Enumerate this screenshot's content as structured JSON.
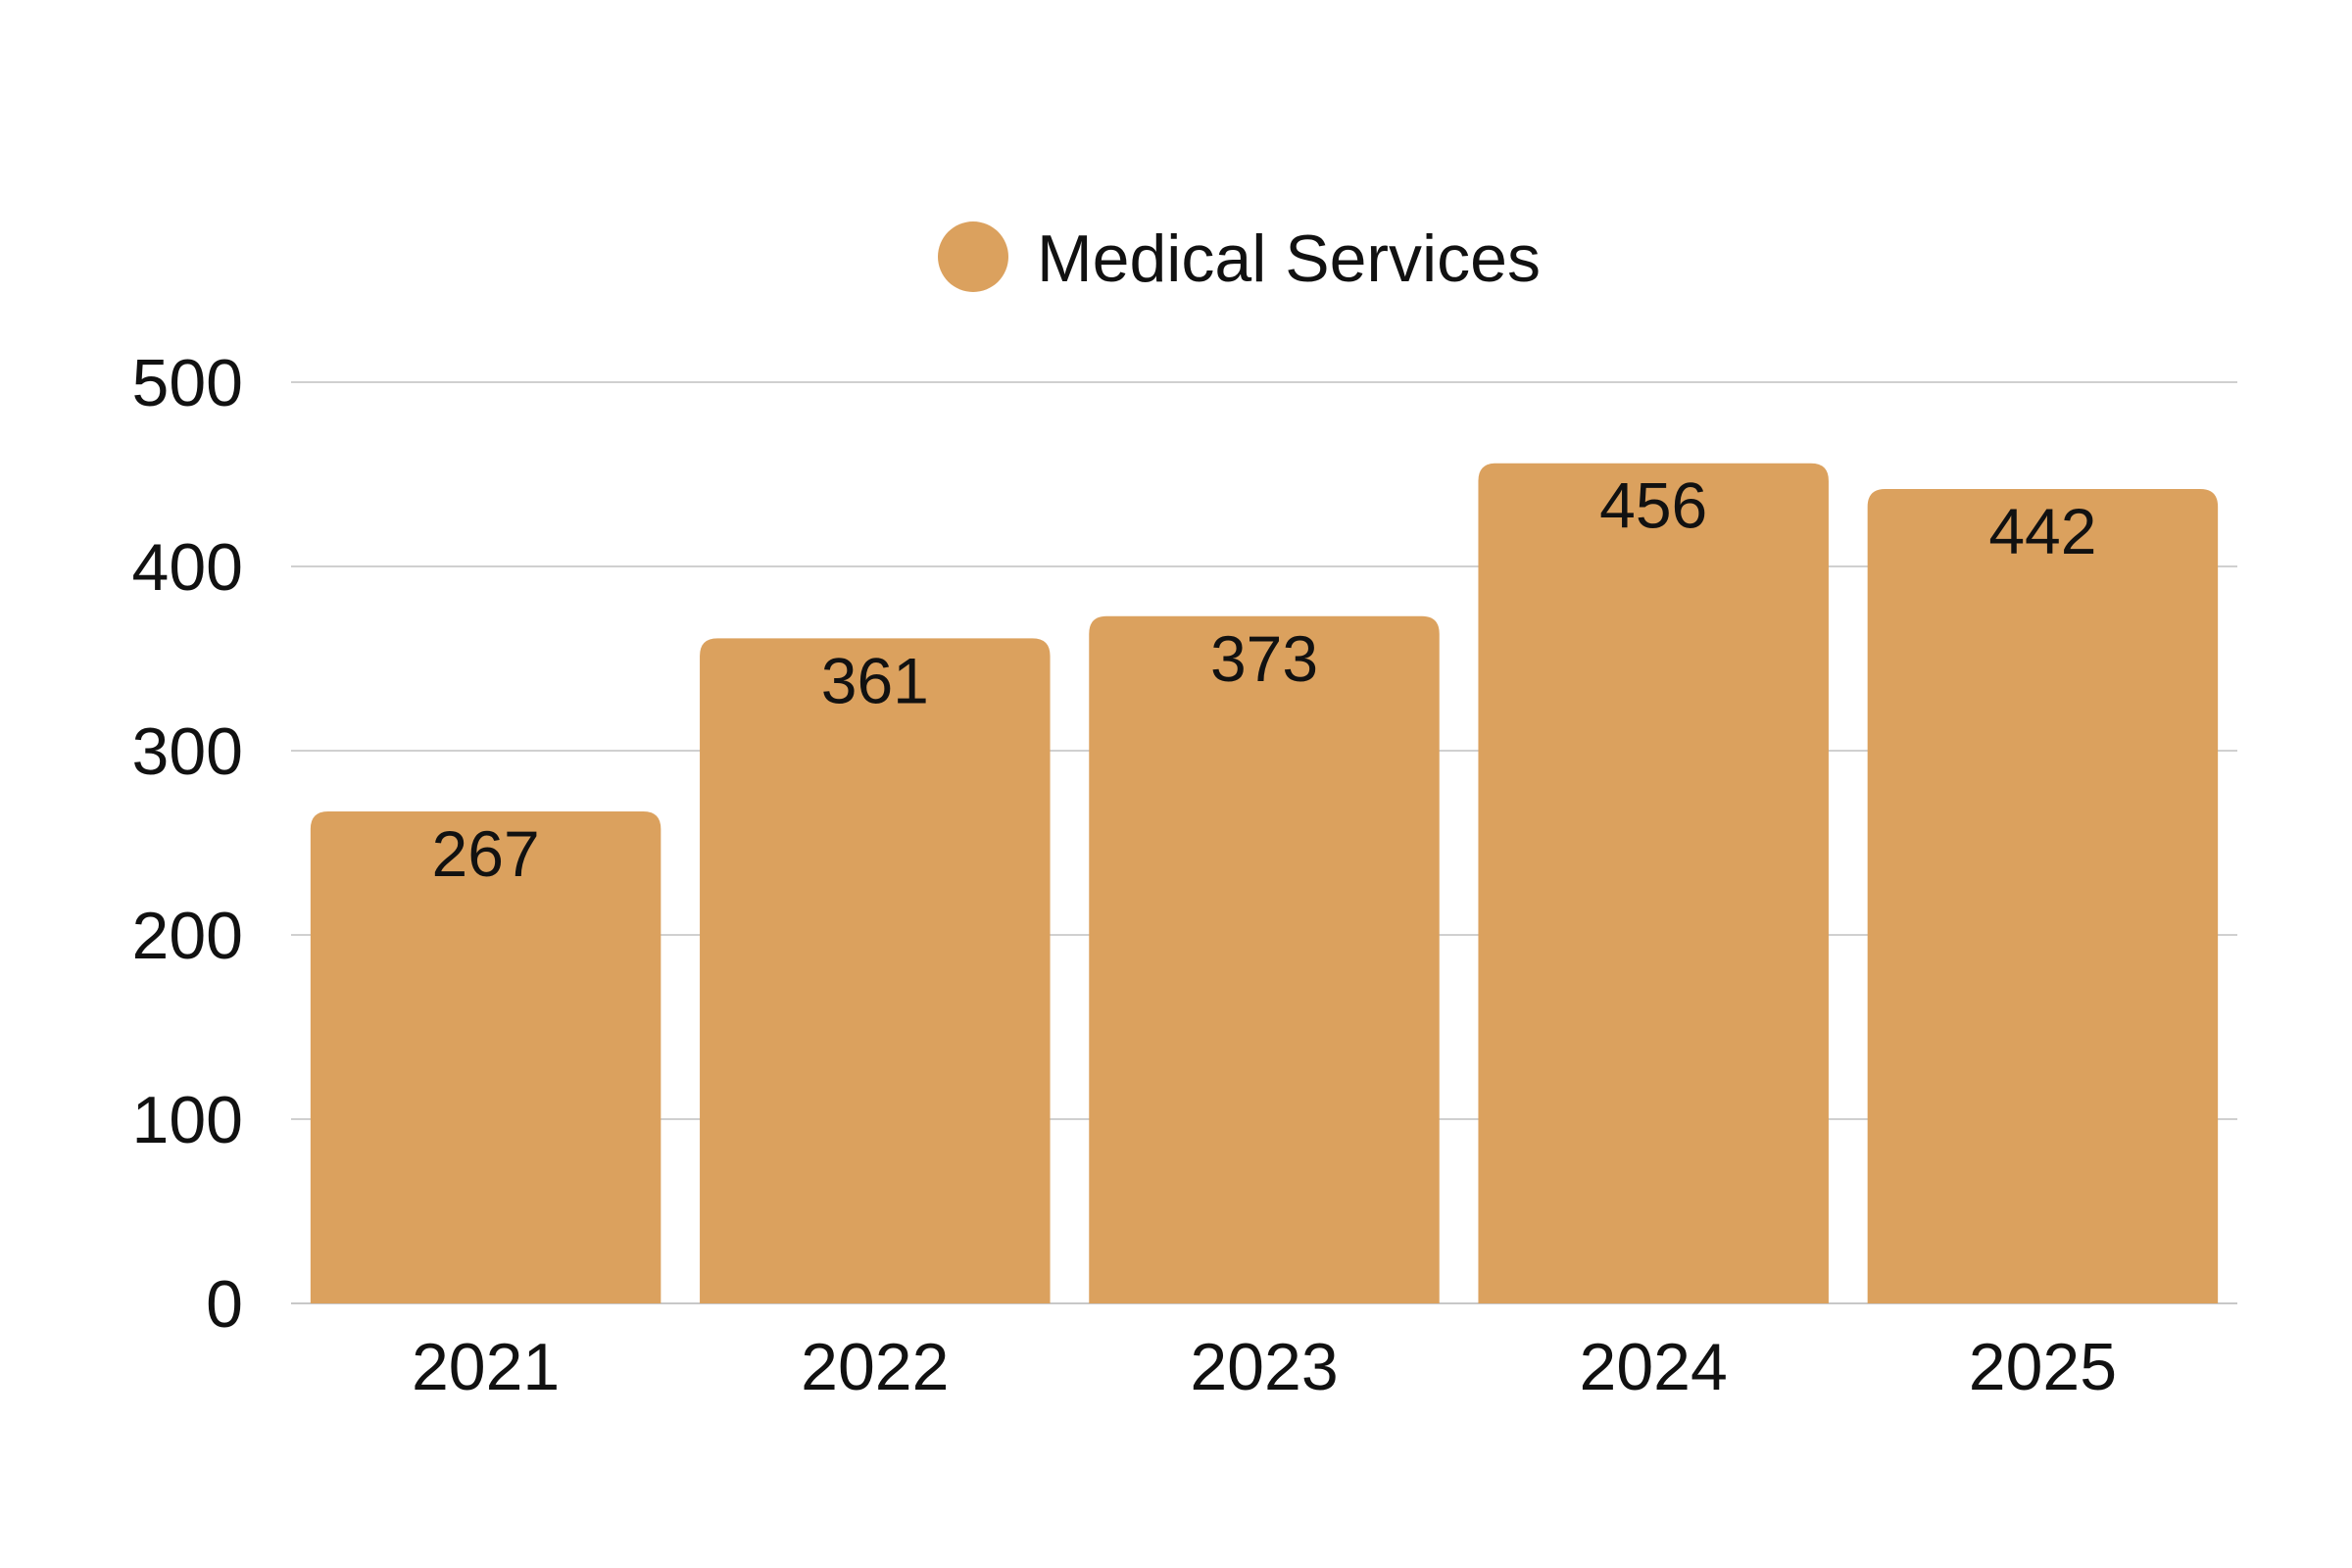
{
  "chart_data": {
    "type": "bar",
    "categories": [
      "2021",
      "2022",
      "2023",
      "2024",
      "2025"
    ],
    "series": [
      {
        "name": "Medical Services",
        "values": [
          267,
          361,
          373,
          456,
          442
        ],
        "color": "#dba15e"
      }
    ],
    "y_ticks": [
      "0",
      "100",
      "200",
      "300",
      "400",
      "500"
    ],
    "ylim": [
      0,
      500
    ],
    "grid": true,
    "legend_position": "top-center",
    "data_labels": true
  }
}
